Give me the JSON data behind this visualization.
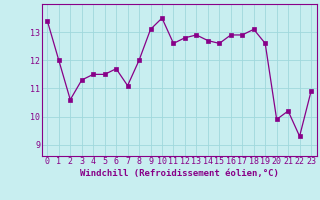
{
  "x": [
    0,
    1,
    2,
    3,
    4,
    5,
    6,
    7,
    8,
    9,
    10,
    11,
    12,
    13,
    14,
    15,
    16,
    17,
    18,
    19,
    20,
    21,
    22,
    23
  ],
  "y": [
    13.4,
    12.0,
    10.6,
    11.3,
    11.5,
    11.5,
    11.7,
    11.1,
    12.0,
    13.1,
    13.5,
    12.6,
    12.8,
    12.9,
    12.7,
    12.6,
    12.9,
    12.9,
    13.1,
    12.6,
    9.9,
    10.2,
    9.3,
    10.9
  ],
  "ylim": [
    8.6,
    14.0
  ],
  "yticks": [
    9,
    10,
    11,
    12,
    13
  ],
  "xticks": [
    0,
    1,
    2,
    3,
    4,
    5,
    6,
    7,
    8,
    9,
    10,
    11,
    12,
    13,
    14,
    15,
    16,
    17,
    18,
    19,
    20,
    21,
    22,
    23
  ],
  "line_color": "#880088",
  "marker_color": "#880088",
  "bg_color": "#c8eef0",
  "grid_color": "#a0d8dc",
  "xlabel": "Windchill (Refroidissement éolien,°C)",
  "xlabel_fontsize": 6.5,
  "tick_fontsize": 6.0,
  "xlim_left": -0.5,
  "xlim_right": 23.5
}
